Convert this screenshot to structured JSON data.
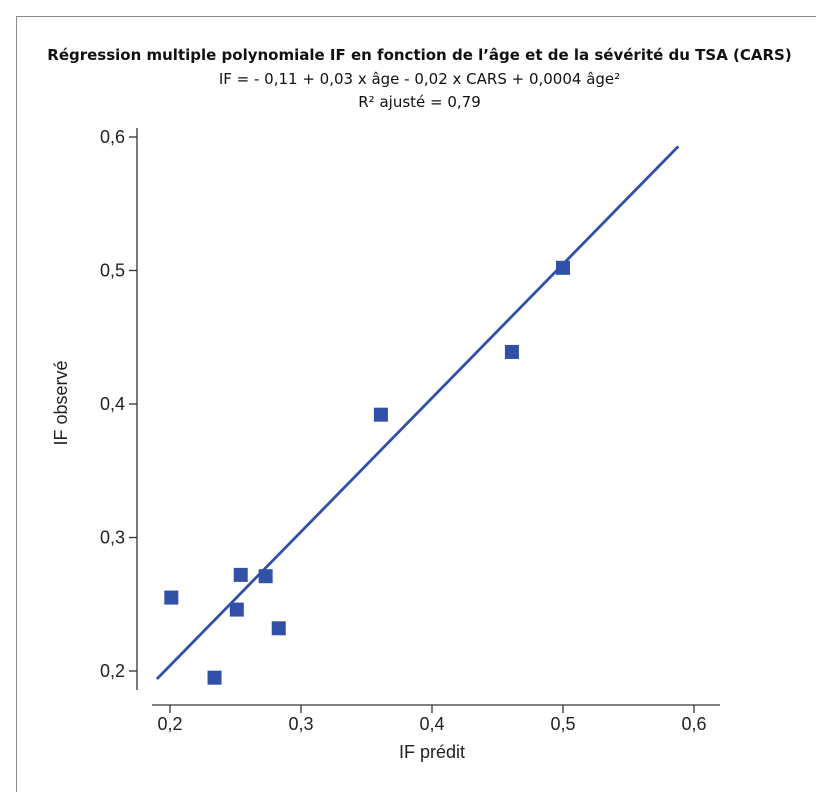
{
  "chart_data": {
    "type": "scatter",
    "title": "Régression multiple polynomiale IF en fonction de l’âge et de la sévérité du TSA (CARS)",
    "subtitle_lines": [
      "IF = - 0,11 + 0,03 x âge - 0,02 x CARS + 0,0004 âge²",
      "R² ajusté = 0,79"
    ],
    "xlabel": "IF prédit",
    "ylabel": "IF observé",
    "xlim": [
      0.18,
      0.62
    ],
    "ylim": [
      0.19,
      0.61
    ],
    "xticks": [
      0.2,
      0.3,
      0.4,
      0.5,
      0.6
    ],
    "yticks": [
      0.2,
      0.3,
      0.4,
      0.5,
      0.6
    ],
    "xtick_labels": [
      "0,2",
      "0,3",
      "0,4",
      "0,5",
      "0,6"
    ],
    "ytick_labels": [
      "0,2",
      "0,3",
      "0,4",
      "0,5",
      "0,6"
    ],
    "points": [
      {
        "x": 0.201,
        "y": 0.255
      },
      {
        "x": 0.234,
        "y": 0.195
      },
      {
        "x": 0.251,
        "y": 0.246
      },
      {
        "x": 0.254,
        "y": 0.272
      },
      {
        "x": 0.273,
        "y": 0.271
      },
      {
        "x": 0.283,
        "y": 0.232
      },
      {
        "x": 0.361,
        "y": 0.392
      },
      {
        "x": 0.461,
        "y": 0.439
      },
      {
        "x": 0.5,
        "y": 0.502
      }
    ],
    "fit_line": {
      "x": [
        0.19,
        0.588
      ],
      "y": [
        0.194,
        0.593
      ]
    },
    "grid": false,
    "colors": {
      "points": "#3150a8",
      "line": "#3150a8",
      "axis": "#333333"
    }
  }
}
